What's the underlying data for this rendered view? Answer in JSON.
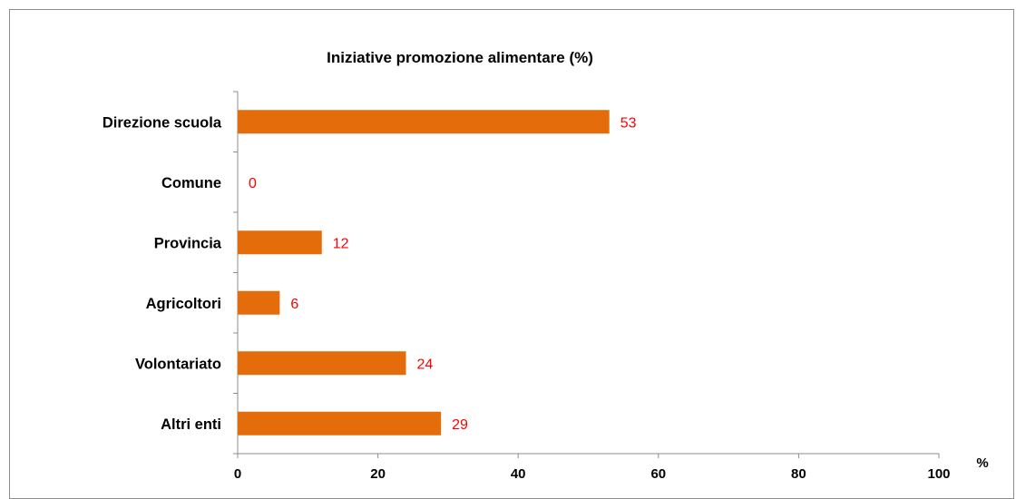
{
  "chart_data": {
    "type": "bar",
    "orientation": "horizontal",
    "title": "Iniziative promozione alimentare (%)",
    "xlabel": "%",
    "ylabel": "",
    "categories": [
      "Direzione scuola",
      "Comune",
      "Provincia",
      "Agricoltori",
      "Volontariato",
      "Altri enti"
    ],
    "values": [
      53,
      0,
      12,
      6,
      24,
      29
    ],
    "value_labels": [
      "53",
      "0",
      "12",
      "6",
      "24",
      "29"
    ],
    "xlim": [
      0,
      100
    ],
    "x_ticks": [
      "0",
      "20",
      "40",
      "60",
      "80",
      "100"
    ],
    "x_tick_values": [
      0,
      20,
      40,
      60,
      80,
      100
    ],
    "grid": false,
    "legend": "none",
    "bar_color": "#e46c0a",
    "value_label_color": "#ff0000"
  }
}
